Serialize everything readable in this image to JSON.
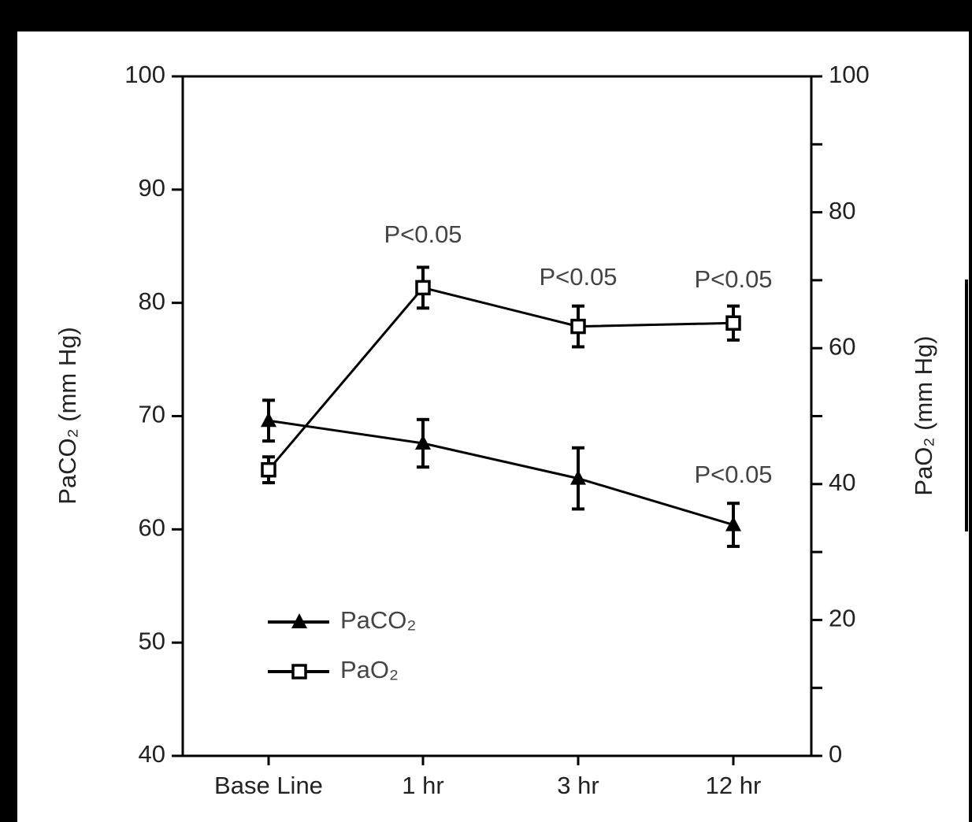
{
  "chart_data": {
    "type": "line",
    "y_label": "PaCO₂ (mm Hg)",
    "y2_label": "PaO₂ (mm Hg)",
    "categories": [
      "Base Line",
      "1 hr",
      "3 hr",
      "12 hr"
    ],
    "series": [
      {
        "name": "PaCO₂",
        "color": "#000000",
        "marker": "triangle",
        "values": [
          69.6,
          67.6,
          64.5,
          60.4
        ],
        "errors": [
          1.8,
          2.1,
          2.7,
          1.9
        ]
      },
      {
        "name": "PaO₂",
        "color": "#000000",
        "marker": "square",
        "axis": "y2",
        "values": [
          42.1,
          68.9,
          63.2,
          63.7
        ],
        "errors": [
          1.9,
          3.0,
          3.0,
          2.5
        ]
      }
    ],
    "annotations": [
      "P<0.05",
      "P<0.05",
      "P<0.05",
      "P<0.05"
    ],
    "ylim": [
      40,
      100
    ],
    "yticks": [
      40,
      50,
      60,
      70,
      80,
      90,
      100
    ],
    "y2lim": [
      0,
      100
    ],
    "y2ticks": [
      0,
      20,
      40,
      60,
      80,
      100
    ],
    "y2minorticks": [
      10,
      30,
      50,
      70,
      90
    ],
    "legend": "lower-left"
  }
}
